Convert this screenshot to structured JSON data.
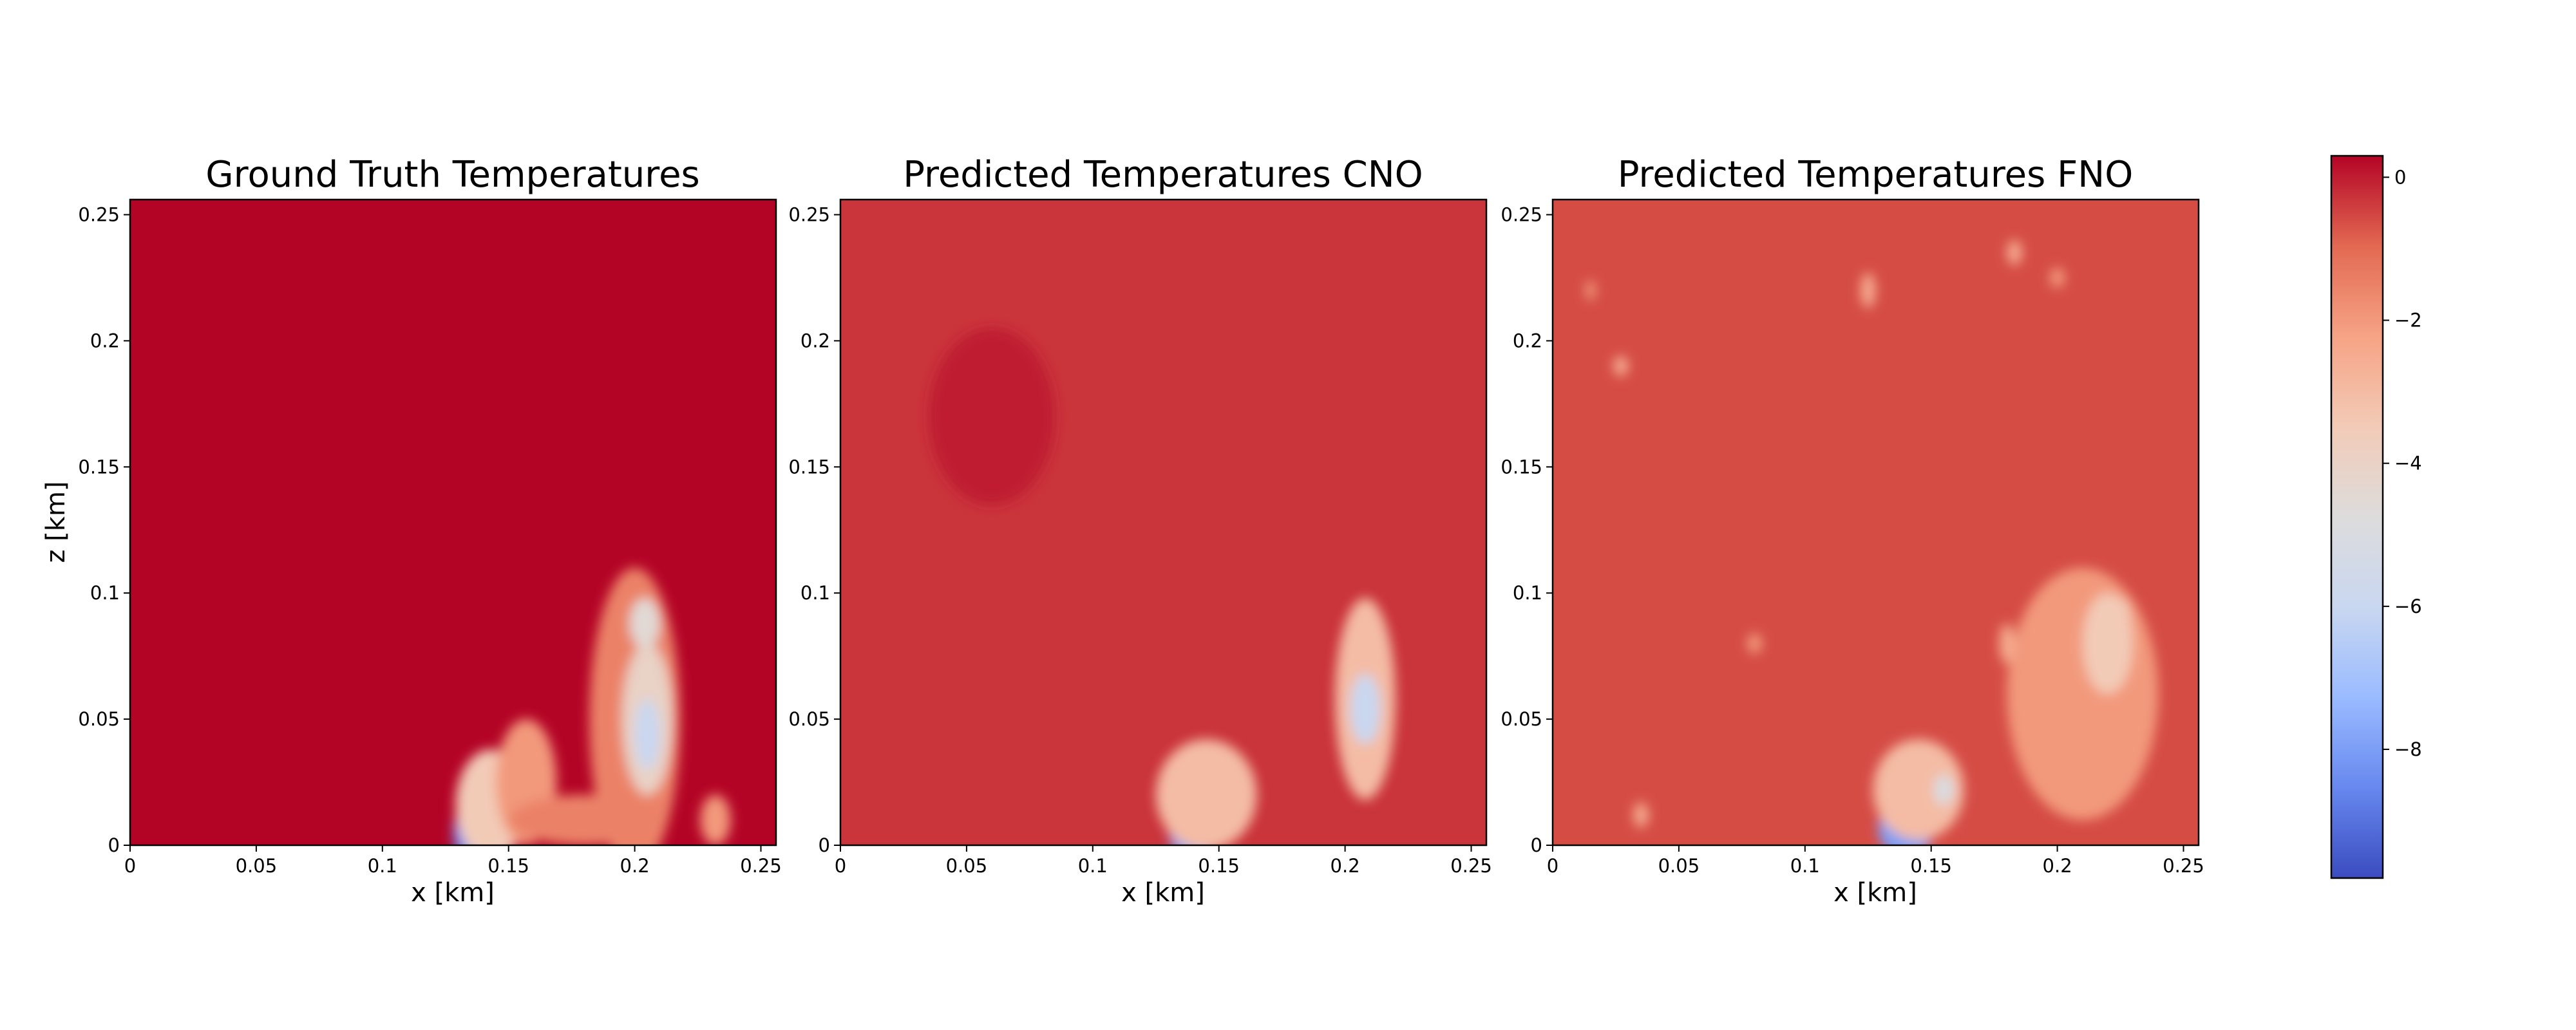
{
  "figure": {
    "colormap": "coolwarm",
    "colormap_stops": [
      "#3b4cc0",
      "#6788ee",
      "#9abbff",
      "#c9d7f0",
      "#dddcdc",
      "#f2cbb7",
      "#f6a385",
      "#e26952",
      "#b40426"
    ]
  },
  "chart_data": [
    {
      "type": "heatmap",
      "title": "Ground Truth Temperatures",
      "xlabel": "x [km]",
      "ylabel": "z [km]",
      "xlim": [
        0,
        0.256
      ],
      "ylim": [
        0,
        0.256
      ],
      "x_ticks": [
        0,
        0.05,
        0.1,
        0.15,
        0.2,
        0.25
      ],
      "x_tick_labels": [
        "0",
        "0.05",
        "0.1",
        "0.15",
        "0.2",
        "0.25"
      ],
      "y_ticks": [
        0,
        0.05,
        0.1,
        0.15,
        0.2,
        0.25
      ],
      "y_tick_labels": [
        "0",
        "0.05",
        "0.1",
        "0.15",
        "0.2",
        "0.25"
      ],
      "background_value": 0.3,
      "features": [
        {
          "x": 0.14,
          "z": 0.005,
          "rx": 0.012,
          "rz": 0.016,
          "value": -8.5
        },
        {
          "x": 0.143,
          "z": 0.016,
          "rx": 0.014,
          "rz": 0.022,
          "value": -3.5
        },
        {
          "x": 0.157,
          "z": 0.025,
          "rx": 0.012,
          "rz": 0.025,
          "value": -2.0
        },
        {
          "x": 0.18,
          "z": 0.01,
          "rx": 0.03,
          "rz": 0.01,
          "value": -1.5
        },
        {
          "x": 0.2,
          "z": 0.05,
          "rx": 0.018,
          "rz": 0.06,
          "value": -1.5
        },
        {
          "x": 0.205,
          "z": 0.05,
          "rx": 0.01,
          "rz": 0.03,
          "value": -4.0
        },
        {
          "x": 0.205,
          "z": 0.044,
          "rx": 0.005,
          "rz": 0.014,
          "value": -6.0
        },
        {
          "x": 0.204,
          "z": 0.088,
          "rx": 0.006,
          "rz": 0.01,
          "value": -4.5
        },
        {
          "x": 0.232,
          "z": 0.01,
          "rx": 0.006,
          "rz": 0.01,
          "value": -2.0
        }
      ]
    },
    {
      "type": "heatmap",
      "title": "Predicted Temperatures CNO",
      "xlabel": "x [km]",
      "ylabel": "",
      "xlim": [
        0,
        0.256
      ],
      "ylim": [
        0,
        0.256
      ],
      "x_ticks": [
        0,
        0.05,
        0.1,
        0.15,
        0.2,
        0.25
      ],
      "x_tick_labels": [
        "0",
        "0.05",
        "0.1",
        "0.15",
        "0.2",
        "0.25"
      ],
      "y_ticks": [
        0,
        0.05,
        0.1,
        0.15,
        0.2,
        0.25
      ],
      "y_tick_labels": [
        "0",
        "0.05",
        "0.1",
        "0.15",
        "0.2",
        "0.25"
      ],
      "background_value": -0.3,
      "features": [
        {
          "x": 0.06,
          "z": 0.17,
          "rx": 0.025,
          "rz": 0.035,
          "value": 0.0
        },
        {
          "x": 0.14,
          "z": 0.006,
          "rx": 0.01,
          "rz": 0.012,
          "value": -8.0
        },
        {
          "x": 0.145,
          "z": 0.02,
          "rx": 0.02,
          "rz": 0.022,
          "value": -3.0
        },
        {
          "x": 0.208,
          "z": 0.058,
          "rx": 0.012,
          "rz": 0.04,
          "value": -3.0
        },
        {
          "x": 0.208,
          "z": 0.054,
          "rx": 0.006,
          "rz": 0.014,
          "value": -6.0
        }
      ]
    },
    {
      "type": "heatmap",
      "title": "Predicted Temperatures FNO",
      "xlabel": "x [km]",
      "ylabel": "",
      "xlim": [
        0,
        0.256
      ],
      "ylim": [
        0,
        0.256
      ],
      "x_ticks": [
        0,
        0.05,
        0.1,
        0.15,
        0.2,
        0.25
      ],
      "x_tick_labels": [
        "0",
        "0.05",
        "0.1",
        "0.15",
        "0.2",
        "0.25"
      ],
      "y_ticks": [
        0,
        0.05,
        0.1,
        0.15,
        0.2,
        0.25
      ],
      "y_tick_labels": [
        "0",
        "0.05",
        "0.1",
        "0.15",
        "0.2",
        "0.25"
      ],
      "background_value": -0.6,
      "features": [
        {
          "x": 0.14,
          "z": 0.007,
          "rx": 0.011,
          "rz": 0.012,
          "value": -8.0
        },
        {
          "x": 0.145,
          "z": 0.022,
          "rx": 0.018,
          "rz": 0.02,
          "value": -3.0
        },
        {
          "x": 0.155,
          "z": 0.022,
          "rx": 0.004,
          "rz": 0.006,
          "value": -5.0
        },
        {
          "x": 0.21,
          "z": 0.06,
          "rx": 0.03,
          "rz": 0.05,
          "value": -2.0
        },
        {
          "x": 0.22,
          "z": 0.08,
          "rx": 0.01,
          "rz": 0.02,
          "value": -3.5
        },
        {
          "x": 0.225,
          "z": 0.09,
          "rx": 0.004,
          "rz": 0.008,
          "value": -3.5
        },
        {
          "x": 0.18,
          "z": 0.08,
          "rx": 0.003,
          "rz": 0.008,
          "value": -2.5
        },
        {
          "x": 0.125,
          "z": 0.22,
          "rx": 0.003,
          "rz": 0.007,
          "value": -2.5
        },
        {
          "x": 0.183,
          "z": 0.235,
          "rx": 0.003,
          "rz": 0.005,
          "value": -2.5
        },
        {
          "x": 0.027,
          "z": 0.19,
          "rx": 0.003,
          "rz": 0.004,
          "value": -2.5
        },
        {
          "x": 0.035,
          "z": 0.012,
          "rx": 0.003,
          "rz": 0.005,
          "value": -2.5
        },
        {
          "x": 0.08,
          "z": 0.08,
          "rx": 0.003,
          "rz": 0.004,
          "value": -2.0
        },
        {
          "x": 0.015,
          "z": 0.22,
          "rx": 0.002,
          "rz": 0.004,
          "value": -2.0
        },
        {
          "x": 0.2,
          "z": 0.225,
          "rx": 0.003,
          "rz": 0.004,
          "value": -2.0
        }
      ]
    },
    {
      "type": "colorbar",
      "vmin": -9.8,
      "vmax": 0.3,
      "ticks": [
        0,
        -2,
        -4,
        -6,
        -8
      ],
      "tick_labels": [
        "0",
        "−2",
        "−4",
        "−6",
        "−8"
      ]
    }
  ]
}
